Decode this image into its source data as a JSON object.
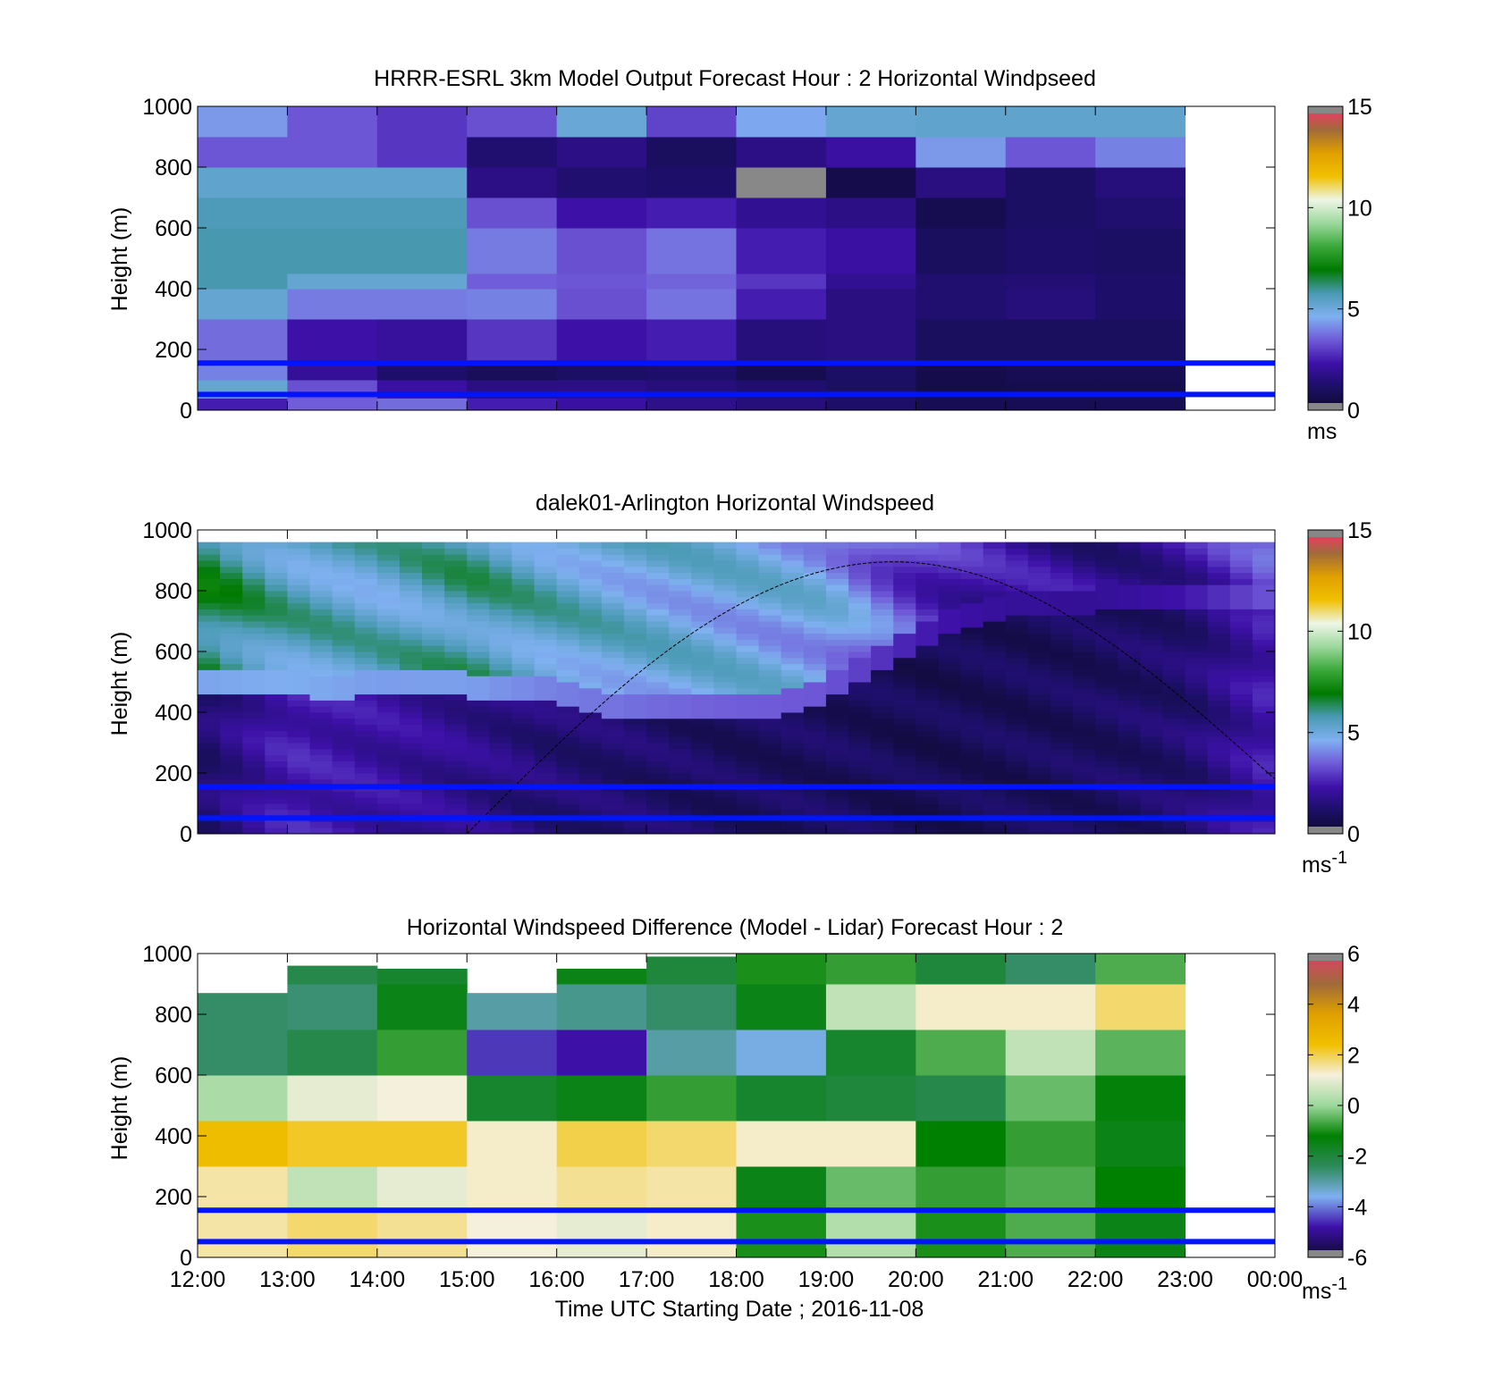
{
  "colors": {
    "speed_ramp": [
      "#0d0a2e",
      "#1c0f66",
      "#3d10a8",
      "#6f5ad8",
      "#7fb0f0",
      "#4a9ab4",
      "#007a00",
      "#3aa83a",
      "#9cd89c",
      "#eef6e6",
      "#f0c000",
      "#e0a000",
      "#a06a3a",
      "#ff3070"
    ],
    "diff_ramp": [
      "#0d0a2e",
      "#3d10a8",
      "#7fb0f0",
      "#2d8a5a",
      "#008000",
      "#9cd89c",
      "#f5f0dc",
      "#f0c000",
      "#e0a000",
      "#a06a3a",
      "#e0406a"
    ],
    "overlay_line": "#0014ff",
    "missing": "#888888"
  },
  "shared_x": {
    "tick_labels": [
      "12:00",
      "13:00",
      "14:00",
      "15:00",
      "16:00",
      "17:00",
      "18:00",
      "19:00",
      "20:00",
      "21:00",
      "22:00",
      "23:00",
      "00:00"
    ],
    "xlabel": "Time UTC  Starting Date ; 2016-11-08"
  },
  "panels": [
    {
      "title": "HRRR-ESRL 3km Model Output   Forecast Hour : 2 Horizontal Windpseed",
      "ylabel": "Height (m)",
      "colorbar_unit": "ms",
      "colorbar_unit_sup": "",
      "colorbar_ticks": [
        "0",
        "5",
        "10",
        "15"
      ]
    },
    {
      "title": "dalek01-Arlington  Horizontal Windspeed",
      "ylabel": "Height (m)",
      "colorbar_unit": "ms",
      "colorbar_unit_sup": "-1",
      "colorbar_ticks": [
        "0",
        "5",
        "10",
        "15"
      ]
    },
    {
      "title": "Horizontal Windspeed Difference (Model - Lidar) Forecast Hour : 2",
      "ylabel": "Height (m)",
      "colorbar_unit": "ms",
      "colorbar_unit_sup": "-1",
      "colorbar_ticks": [
        "-6",
        "-4",
        "-2",
        "0",
        "2",
        "4",
        "6"
      ]
    }
  ],
  "chart_data": [
    {
      "type": "heatmap",
      "title": "HRRR-ESRL 3km Model Output   Forecast Hour : 2 Horizontal Windpseed",
      "ylabel": "Height (m)",
      "ylim": [
        0,
        1000
      ],
      "y_ticks": [
        0,
        200,
        400,
        600,
        800,
        1000
      ],
      "x_tick_labels": [
        "12:00",
        "13:00",
        "14:00",
        "15:00",
        "16:00",
        "17:00",
        "18:00",
        "19:00",
        "20:00",
        "21:00",
        "22:00",
        "23:00",
        "00:00"
      ],
      "xlim_hours": [
        12,
        24
      ],
      "colorbar": {
        "range": [
          0,
          15
        ],
        "ticks": [
          0,
          5,
          10,
          15
        ],
        "unit": "ms"
      },
      "hlines_m": [
        155,
        52
      ],
      "hour_starts": [
        12,
        13,
        14,
        15,
        16,
        17,
        18,
        19,
        20,
        21,
        22
      ],
      "height_edges_m": [
        0,
        40,
        100,
        160,
        300,
        400,
        450,
        600,
        700,
        800,
        900,
        1000
      ],
      "values": [
        [
          2.5,
          3.5,
          3.7,
          2.5,
          2.2,
          1.8,
          1.5,
          1.2,
          0.8,
          0.8,
          0.8
        ],
        [
          5.2,
          3.3,
          2.2,
          1.6,
          1.7,
          1.5,
          1.3,
          1.1,
          0.6,
          0.7,
          0.7
        ],
        [
          4.0,
          2.0,
          1.2,
          0.9,
          1.1,
          1.2,
          0.7,
          1.1,
          0.6,
          0.8,
          0.8
        ],
        [
          3.7,
          2.3,
          2.1,
          2.9,
          2.3,
          2.5,
          1.5,
          1.6,
          1.0,
          1.0,
          1.0
        ],
        [
          5.2,
          3.9,
          3.9,
          4.0,
          3.3,
          3.8,
          2.5,
          1.6,
          1.3,
          1.5,
          1.2
        ],
        [
          5.8,
          5.2,
          5.2,
          3.5,
          3.4,
          3.6,
          2.9,
          1.9,
          1.3,
          1.4,
          1.2
        ],
        [
          5.8,
          5.8,
          5.8,
          3.9,
          3.3,
          3.8,
          2.5,
          2.2,
          1.0,
          1.2,
          1.1
        ],
        [
          5.7,
          5.7,
          5.7,
          3.3,
          2.3,
          2.5,
          1.9,
          1.7,
          0.7,
          1.1,
          1.3
        ],
        [
          5.3,
          5.3,
          5.3,
          1.7,
          1.3,
          1.2,
          -1,
          0.6,
          1.6,
          1.1,
          1.5
        ],
        [
          3.4,
          3.4,
          2.9,
          1.3,
          1.7,
          1.0,
          1.7,
          2.2,
          4.3,
          3.4,
          4.0
        ],
        [
          4.3,
          3.4,
          2.9,
          3.3,
          5.1,
          3.1,
          4.5,
          5.2,
          5.3,
          5.3,
          5.3
        ]
      ]
    },
    {
      "type": "heatmap",
      "title": "dalek01-Arlington  Horizontal Windspeed",
      "ylabel": "Height (m)",
      "ylim": [
        0,
        1000
      ],
      "y_ticks": [
        0,
        200,
        400,
        600,
        800,
        1000
      ],
      "x_tick_labels": [
        "12:00",
        "13:00",
        "14:00",
        "15:00",
        "16:00",
        "17:00",
        "18:00",
        "19:00",
        "20:00",
        "21:00",
        "22:00",
        "23:00",
        "00:00"
      ],
      "xlim_hours": [
        12,
        24
      ],
      "colorbar": {
        "range": [
          0,
          15
        ],
        "ticks": [
          0,
          5,
          10,
          15
        ],
        "unit": "ms-1"
      },
      "hlines_m": [
        155,
        52
      ],
      "time_resolution_hours": 0.25,
      "data_end_hour": 23.85,
      "hour_marks": [
        12,
        13,
        14,
        15,
        16,
        17,
        18,
        19,
        20,
        21,
        22,
        23,
        24
      ],
      "boundary_layer_top_m": [
        500,
        485,
        490,
        470,
        500,
        500,
        480,
        470,
        460,
        420,
        410,
        400,
        420,
        420,
        470,
        560,
        640,
        700,
        740,
        760,
        760,
        770,
        780,
        780,
        780
      ],
      "lower_layer_speed_ms": [
        1.2,
        2.5,
        2.2,
        1.8,
        1.4,
        1.2,
        1.0,
        1.0,
        0.8,
        0.9,
        1.0,
        1.3,
        2.5
      ],
      "upper_layer_speed_ms": [
        6.5,
        5.5,
        5.3,
        5.8,
        5.3,
        5.0,
        4.8,
        4.6,
        3.0,
        2.0,
        1.8,
        2.2,
        3.2
      ],
      "overlay_curve": {
        "start_hour": 15.0,
        "peak_hour": 19.75,
        "peak_m": 895,
        "end_hour": 24.0,
        "end_m": 180
      }
    },
    {
      "type": "heatmap",
      "title": "Horizontal Windspeed Difference (Model - Lidar) Forecast Hour : 2",
      "ylabel": "Height (m)",
      "ylim": [
        0,
        1000
      ],
      "y_ticks": [
        0,
        200,
        400,
        600,
        800,
        1000
      ],
      "x_tick_labels": [
        "12:00",
        "13:00",
        "14:00",
        "15:00",
        "16:00",
        "17:00",
        "18:00",
        "19:00",
        "20:00",
        "21:00",
        "22:00",
        "23:00",
        "00:00"
      ],
      "xlabel": "Time UTC  Starting Date ; 2016-11-08",
      "xlim_hours": [
        12,
        24
      ],
      "colorbar": {
        "range": [
          -6,
          6
        ],
        "ticks": [
          -6,
          -4,
          -2,
          0,
          2,
          4,
          6
        ],
        "unit": "ms-1"
      },
      "hlines_m": [
        155,
        52
      ],
      "hour_starts": [
        12,
        13,
        14,
        15,
        16,
        17,
        18,
        19,
        20,
        21,
        22
      ],
      "column_top_m": [
        870,
        960,
        950,
        870,
        950,
        990,
        1000,
        1000,
        1000,
        1000,
        1000
      ],
      "height_edges_m": [
        0,
        150,
        300,
        450,
        600,
        750,
        900,
        1000
      ],
      "values": [
        [
          1.5,
          1.8,
          1.6,
          1.2,
          1.0,
          1.3,
          -1.0,
          0.3,
          -1.0,
          -0.6,
          -1.5
        ],
        [
          1.5,
          0.5,
          1.0,
          1.3,
          1.6,
          1.5,
          -1.5,
          -0.4,
          -0.8,
          -0.6,
          -1.2
        ],
        [
          2.5,
          2.2,
          2.2,
          1.3,
          2.0,
          1.8,
          1.3,
          1.3,
          -1.2,
          -0.8,
          -1.5
        ],
        [
          0.2,
          1.0,
          1.2,
          -1.8,
          -1.5,
          -0.8,
          -1.8,
          -2.0,
          -2.2,
          -0.4,
          -1.3
        ],
        [
          -2.5,
          -2.2,
          -0.8,
          -4.5,
          -4.8,
          -3.0,
          -3.5,
          -1.8,
          -0.6,
          0.5,
          -0.5
        ],
        [
          -2.5,
          -2.6,
          -1.5,
          -3.0,
          -2.8,
          -2.5,
          -1.5,
          0.5,
          1.3,
          1.3,
          1.8
        ],
        [
          -2.5,
          -2.2,
          -1.8,
          -2.5,
          -1.5,
          -2.0,
          -1.0,
          -0.8,
          -2.0,
          -2.5,
          -0.6
        ]
      ]
    }
  ]
}
